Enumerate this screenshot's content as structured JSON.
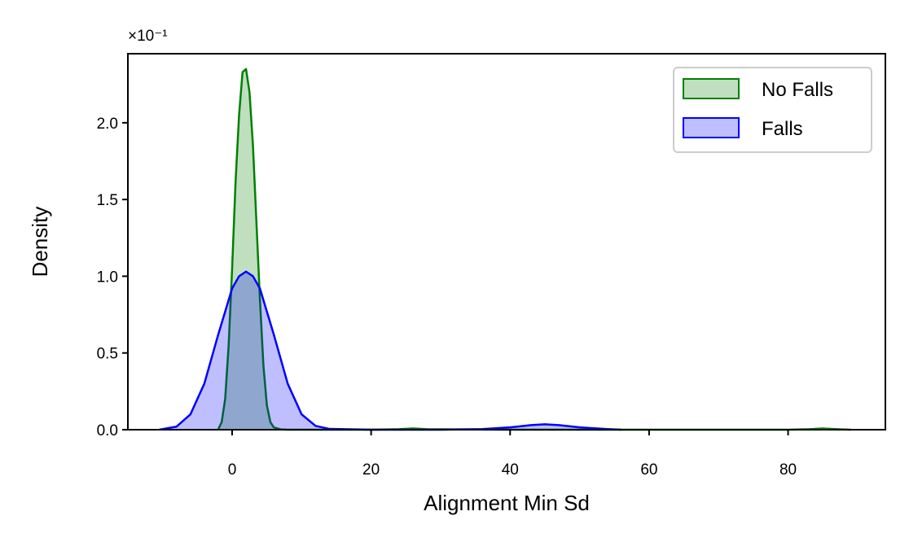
{
  "chart_data": {
    "type": "area",
    "xlabel": "Alignment Min Sd",
    "ylabel": "Density",
    "scale_offset_label": "×10⁻¹",
    "xlim": [
      -15,
      94
    ],
    "ylim": [
      0,
      2.45
    ],
    "x_ticks": [
      0,
      20,
      40,
      60,
      80
    ],
    "y_ticks": [
      0.0,
      0.5,
      1.0,
      1.5,
      2.0
    ],
    "x_tick_labels": [
      "0",
      "20",
      "40",
      "60",
      "80"
    ],
    "y_tick_labels": [
      "0.0",
      "0.5",
      "1.0",
      "1.5",
      "2.0"
    ],
    "legend_position": "upper-right",
    "series": [
      {
        "name": "No Falls",
        "color": "#008000",
        "fill": "rgba(0,128,0,0.25)",
        "x": [
          -2.0,
          -1.5,
          -1.0,
          -0.5,
          0.0,
          0.5,
          1.0,
          1.5,
          2.0,
          2.5,
          3.0,
          3.5,
          4.0,
          4.5,
          5.0,
          5.5,
          6.0,
          7.0,
          8.0,
          10.0,
          20.0,
          24.0,
          26.0,
          28.0,
          40.0,
          60.0,
          80.0,
          83.0,
          85.0,
          87.0,
          89.0
        ],
        "y": [
          0.002,
          0.05,
          0.2,
          0.55,
          1.05,
          1.62,
          2.05,
          2.33,
          2.35,
          2.2,
          1.85,
          1.35,
          0.85,
          0.42,
          0.16,
          0.05,
          0.015,
          0.002,
          0.0,
          0.0,
          0.0,
          0.003,
          0.008,
          0.003,
          0.0,
          0.0,
          0.0,
          0.003,
          0.008,
          0.003,
          0.0
        ]
      },
      {
        "name": "Falls",
        "color": "#0000ff",
        "fill": "rgba(0,0,255,0.25)",
        "x": [
          -10.5,
          -8.0,
          -6.0,
          -4.0,
          -2.0,
          0.0,
          1.0,
          2.0,
          3.0,
          4.0,
          6.0,
          8.0,
          10.0,
          12.0,
          14.0,
          20.0,
          30.0,
          36.0,
          40.0,
          43.0,
          45.0,
          47.0,
          50.0,
          54.0,
          56.0
        ],
        "y": [
          0.0,
          0.02,
          0.1,
          0.3,
          0.62,
          0.92,
          1.0,
          1.03,
          1.0,
          0.92,
          0.62,
          0.3,
          0.1,
          0.025,
          0.005,
          0.0,
          0.0,
          0.004,
          0.015,
          0.03,
          0.035,
          0.03,
          0.015,
          0.004,
          0.0
        ]
      }
    ]
  }
}
